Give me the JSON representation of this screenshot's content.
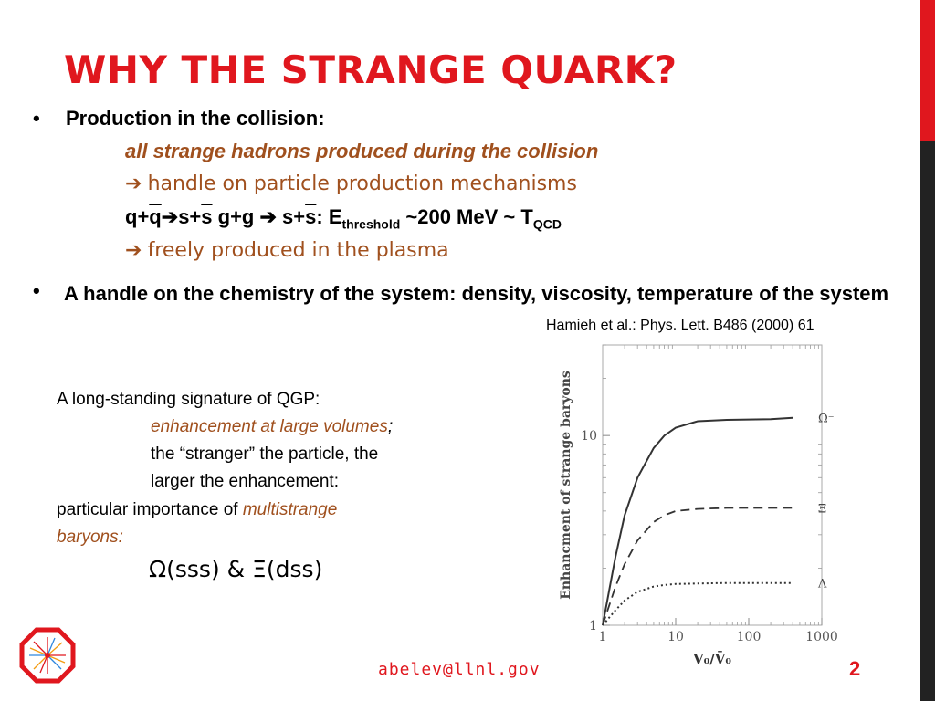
{
  "title": "WHY THE STRANGE QUARK?",
  "bullet_symbol": "•",
  "bullet1": {
    "heading": "Production in the collision:",
    "sub1": "all strange hadrons  produced during the collision",
    "arrow": "➔",
    "sub2": "handle on particle production mechanisms",
    "eq": {
      "q": "q+",
      "qbar": "q",
      "arrow": "➔",
      "s": "s+",
      "sbar": "s",
      "gg": " g+g ",
      "arrow2": "➔",
      "s2": " s+",
      "sbar2": "s",
      "e_prefix": ": E",
      "threshold": "threshold",
      "mev": " ~200 MeV ~ T",
      "qcd": "QCD"
    },
    "sub4": "freely produced in the plasma"
  },
  "bullet2": {
    "text": "A handle on the chemistry of the system: density, viscosity, temperature of the system"
  },
  "citation": "Hamieh et al.: Phys. Lett. B486 (2000) 61",
  "signature": {
    "line1": "A long-standing signature of QGP:",
    "line2": "enhancement at large volumes",
    "line2_suffix": ";",
    "line3": "the “stranger” the particle, the",
    "line4": "larger the enhancement:",
    "line5_prefix": "particular importance of ",
    "line5_highlight": "multistrange",
    "line6": "baryons:",
    "omega_line": {
      "omega": "Ω",
      "omega_rest": "(sss) & ",
      "xi": "Ξ",
      "xi_rest": "(dss)"
    }
  },
  "chart_data": {
    "type": "line",
    "xlabel": "V₀/V̄₀",
    "ylabel": "Enhancment of strange baryons",
    "x_scale": "log",
    "y_scale": "log",
    "xlim": [
      1,
      1000
    ],
    "ylim": [
      1,
      30
    ],
    "x_ticks": [
      "1",
      "10",
      "100",
      "1000"
    ],
    "y_ticks": [
      "1",
      "10"
    ],
    "series": [
      {
        "name": "Ω⁻",
        "style": "solid",
        "x": [
          1,
          1.5,
          2,
          3,
          5,
          7,
          10,
          20,
          50,
          100,
          200,
          400
        ],
        "y": [
          1,
          2.3,
          3.8,
          6.0,
          8.6,
          10.0,
          11.0,
          11.9,
          12.1,
          12.15,
          12.2,
          12.4
        ]
      },
      {
        "name": "Ξ⁻",
        "style": "dashed",
        "x": [
          1,
          1.5,
          2,
          3,
          5,
          7,
          10,
          20,
          50,
          100,
          200,
          400
        ],
        "y": [
          1,
          1.6,
          2.1,
          2.8,
          3.5,
          3.8,
          4.0,
          4.1,
          4.15,
          4.15,
          4.15,
          4.15
        ]
      },
      {
        "name": "Λ",
        "style": "dotted",
        "x": [
          1,
          1.5,
          2,
          3,
          5,
          7,
          10,
          20,
          50,
          100,
          200,
          400
        ],
        "y": [
          1,
          1.2,
          1.35,
          1.5,
          1.6,
          1.63,
          1.65,
          1.66,
          1.67,
          1.67,
          1.67,
          1.67
        ]
      }
    ]
  },
  "footer": {
    "email": "abelev@llnl.gov",
    "page": "2"
  },
  "colors": {
    "accent_red": "#e0171e",
    "brown": "#a0501e",
    "dark_bar": "#222222"
  }
}
